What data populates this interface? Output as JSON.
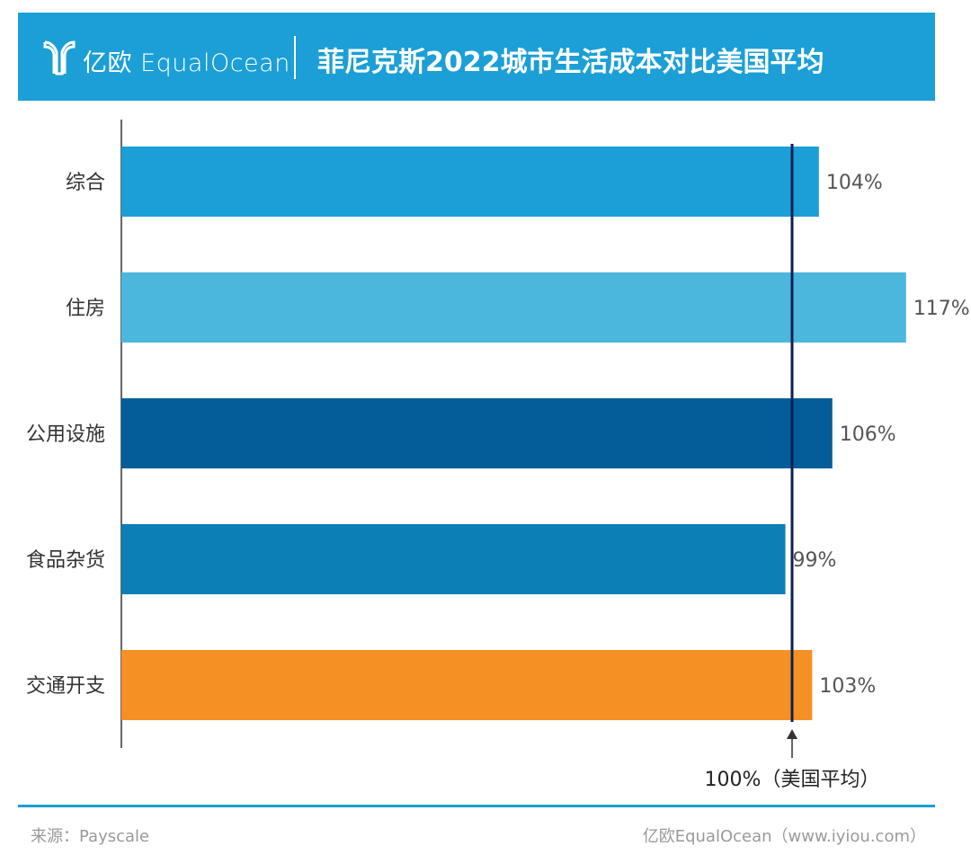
{
  "header": {
    "brand": "亿欧 EqualOcean",
    "title": "菲尼克斯2022城市生活成本对比美国平均"
  },
  "chart_data": {
    "type": "bar",
    "orientation": "horizontal",
    "title": "菲尼克斯2022城市生活成本对比美国平均",
    "categories": [
      "综合",
      "住房",
      "公用设施",
      "食品杂货",
      "交通开支"
    ],
    "values": [
      104,
      117,
      106,
      99,
      103
    ],
    "value_labels": [
      "104%",
      "117%",
      "106%",
      "99%",
      "103%"
    ],
    "bar_colors": [
      "#1b9fd6",
      "#4cb7dc",
      "#035d98",
      "#0b7fb6",
      "#f59025"
    ],
    "unit": "%",
    "xlim": [
      0,
      117
    ],
    "reference": {
      "value": 100,
      "label": "100%（美国平均）",
      "color": "#0c1f55"
    },
    "grid": false,
    "legend": "none"
  },
  "footer": {
    "source": "来源：Payscale",
    "credit": "亿欧EqualOcean（www.iyiou.com）"
  }
}
